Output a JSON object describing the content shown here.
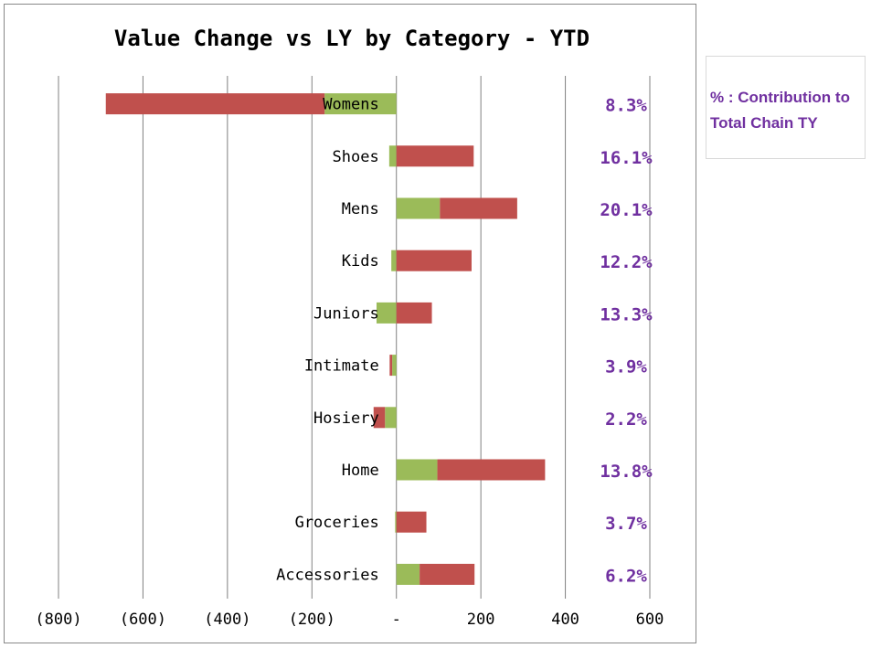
{
  "chart_data": {
    "type": "bar",
    "orientation": "horizontal",
    "stacked": true,
    "title": "Value Change vs LY by Category - YTD",
    "categories": [
      "Womens",
      "Shoes",
      "Mens",
      "Kids",
      "Juniors",
      "Intimate",
      "Hosiery",
      "Home",
      "Groceries",
      "Accessories"
    ],
    "series": [
      {
        "color": "#9bbb59",
        "values": [
          -170,
          -17,
          103,
          -12,
          -47,
          -10,
          -27,
          97,
          -3,
          55
        ]
      },
      {
        "color": "#c0504d",
        "values": [
          -518,
          183,
          183,
          178,
          84,
          -6,
          -27,
          255,
          71,
          130
        ]
      }
    ],
    "percent_labels": [
      "8.3%",
      "16.1%",
      "20.1%",
      "12.2%",
      "13.3%",
      "3.9%",
      "2.2%",
      "13.8%",
      "3.7%",
      "6.2%"
    ],
    "xlim": [
      -800,
      600
    ],
    "xticks": [
      -800,
      -600,
      -400,
      -200,
      0,
      200,
      400,
      600
    ],
    "xtick_labels": [
      "(800)",
      "(600)",
      "(400)",
      "(200)",
      "-",
      "200",
      "400",
      "600"
    ],
    "grid": true,
    "legend_position": "right"
  },
  "legend_note": "% : Contribution to Total Chain TY",
  "colors": {
    "label_purple": "#7030a0",
    "frame_border": "#888888"
  }
}
